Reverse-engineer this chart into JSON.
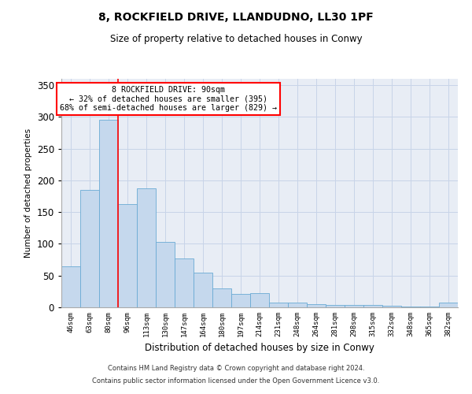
{
  "title1": "8, ROCKFIELD DRIVE, LLANDUDNO, LL30 1PF",
  "title2": "Size of property relative to detached houses in Conwy",
  "xlabel": "Distribution of detached houses by size in Conwy",
  "ylabel": "Number of detached properties",
  "categories": [
    "46sqm",
    "63sqm",
    "80sqm",
    "96sqm",
    "113sqm",
    "130sqm",
    "147sqm",
    "164sqm",
    "180sqm",
    "197sqm",
    "214sqm",
    "231sqm",
    "248sqm",
    "264sqm",
    "281sqm",
    "298sqm",
    "315sqm",
    "332sqm",
    "348sqm",
    "365sqm",
    "382sqm"
  ],
  "values": [
    65,
    185,
    295,
    163,
    188,
    103,
    77,
    55,
    30,
    21,
    22,
    8,
    7,
    5,
    4,
    4,
    4,
    2,
    1,
    1,
    7
  ],
  "bar_color": "#c5d8ed",
  "bar_edge_color": "#6aaad4",
  "bar_edge_width": 0.6,
  "annotation_text": "8 ROCKFIELD DRIVE: 90sqm\n← 32% of detached houses are smaller (395)\n68% of semi-detached houses are larger (829) →",
  "annotation_box_color": "white",
  "annotation_box_edge": "red",
  "ylim": [
    0,
    360
  ],
  "yticks": [
    0,
    50,
    100,
    150,
    200,
    250,
    300,
    350
  ],
  "grid_color": "#c8d4e8",
  "background_color": "#e8edf5",
  "footer1": "Contains HM Land Registry data © Crown copyright and database right 2024.",
  "footer2": "Contains public sector information licensed under the Open Government Licence v3.0."
}
